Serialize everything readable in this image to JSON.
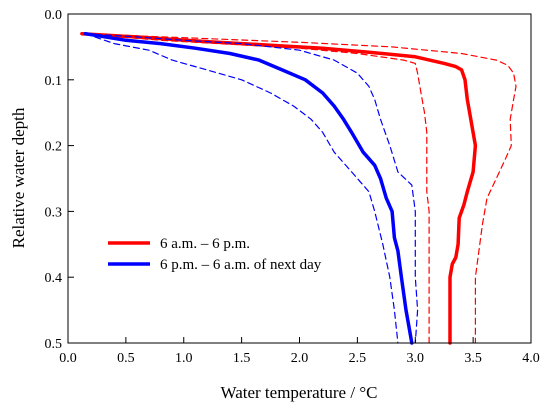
{
  "chart_data": {
    "type": "line",
    "title": "",
    "xlabel": "Water temperature / °C",
    "ylabel": "Relative water depth",
    "xlim": [
      0.0,
      4.0
    ],
    "ylim": [
      0.0,
      0.5
    ],
    "y_inverted": true,
    "x_axis_position": "bottom",
    "grid": false,
    "legend_placement": "lower-left",
    "xticks": [
      0.0,
      0.5,
      1.0,
      1.5,
      2.0,
      2.5,
      3.0,
      3.5,
      4.0
    ],
    "yticks": [
      0.0,
      0.1,
      0.2,
      0.3,
      0.4,
      0.5
    ],
    "xtick_labels": [
      "0.0",
      "0.5",
      "1.0",
      "1.5",
      "2.0",
      "2.5",
      "3.0",
      "3.5",
      "4.0"
    ],
    "ytick_labels": [
      "0.0",
      "0.1",
      "0.2",
      "0.3",
      "0.4",
      "0.5"
    ],
    "series": [
      {
        "name": "6 a.m. – 6 p.m.",
        "color": "#ff0000",
        "style": "solid",
        "in_legend": true,
        "points": [
          [
            0.12,
            0.03
          ],
          [
            0.6,
            0.035
          ],
          [
            1.2,
            0.042
          ],
          [
            1.8,
            0.048
          ],
          [
            2.2,
            0.052
          ],
          [
            2.6,
            0.058
          ],
          [
            3.0,
            0.065
          ],
          [
            3.25,
            0.075
          ],
          [
            3.35,
            0.08
          ],
          [
            3.4,
            0.085
          ],
          [
            3.43,
            0.1
          ],
          [
            3.45,
            0.13
          ],
          [
            3.48,
            0.16
          ],
          [
            3.52,
            0.2
          ],
          [
            3.5,
            0.24
          ],
          [
            3.45,
            0.27
          ],
          [
            3.42,
            0.29
          ],
          [
            3.38,
            0.31
          ],
          [
            3.37,
            0.35
          ],
          [
            3.35,
            0.37
          ],
          [
            3.32,
            0.38
          ],
          [
            3.3,
            0.4
          ],
          [
            3.3,
            0.45
          ],
          [
            3.3,
            0.5
          ]
        ]
      },
      {
        "name": "6 a.m. – 6 p.m. upper bound",
        "color": "#ff0000",
        "style": "dashed",
        "in_legend": false,
        "points": [
          [
            0.12,
            0.03
          ],
          [
            1.0,
            0.036
          ],
          [
            2.0,
            0.043
          ],
          [
            2.8,
            0.05
          ],
          [
            3.4,
            0.06
          ],
          [
            3.7,
            0.07
          ],
          [
            3.8,
            0.078
          ],
          [
            3.85,
            0.09
          ],
          [
            3.87,
            0.11
          ],
          [
            3.85,
            0.13
          ],
          [
            3.82,
            0.16
          ],
          [
            3.83,
            0.2
          ],
          [
            3.78,
            0.22
          ],
          [
            3.7,
            0.25
          ],
          [
            3.62,
            0.28
          ],
          [
            3.58,
            0.32
          ],
          [
            3.55,
            0.36
          ],
          [
            3.52,
            0.4
          ],
          [
            3.52,
            0.45
          ],
          [
            3.52,
            0.5
          ]
        ]
      },
      {
        "name": "6 a.m. – 6 p.m. lower bound",
        "color": "#ff0000",
        "style": "dashed",
        "in_legend": false,
        "points": [
          [
            0.12,
            0.03
          ],
          [
            0.8,
            0.04
          ],
          [
            1.5,
            0.047
          ],
          [
            2.0,
            0.052
          ],
          [
            2.5,
            0.06
          ],
          [
            2.9,
            0.07
          ],
          [
            3.0,
            0.075
          ],
          [
            3.02,
            0.09
          ],
          [
            3.05,
            0.12
          ],
          [
            3.08,
            0.15
          ],
          [
            3.1,
            0.18
          ],
          [
            3.1,
            0.22
          ],
          [
            3.1,
            0.27
          ],
          [
            3.12,
            0.3
          ],
          [
            3.12,
            0.35
          ],
          [
            3.12,
            0.4
          ],
          [
            3.12,
            0.45
          ],
          [
            3.12,
            0.5
          ]
        ]
      },
      {
        "name": "6 p.m. – 6 a.m. of next day",
        "color": "#0000ff",
        "style": "solid",
        "in_legend": true,
        "points": [
          [
            0.15,
            0.03
          ],
          [
            0.5,
            0.04
          ],
          [
            0.8,
            0.045
          ],
          [
            1.1,
            0.052
          ],
          [
            1.4,
            0.06
          ],
          [
            1.65,
            0.07
          ],
          [
            1.85,
            0.085
          ],
          [
            2.05,
            0.1
          ],
          [
            2.2,
            0.12
          ],
          [
            2.3,
            0.14
          ],
          [
            2.38,
            0.16
          ],
          [
            2.45,
            0.18
          ],
          [
            2.55,
            0.21
          ],
          [
            2.65,
            0.23
          ],
          [
            2.7,
            0.25
          ],
          [
            2.75,
            0.28
          ],
          [
            2.8,
            0.3
          ],
          [
            2.82,
            0.34
          ],
          [
            2.85,
            0.36
          ],
          [
            2.88,
            0.4
          ],
          [
            2.92,
            0.45
          ],
          [
            2.95,
            0.48
          ],
          [
            2.97,
            0.5
          ]
        ]
      },
      {
        "name": "6 p.m. – 6 a.m. of next day upper bound",
        "color": "#0000ff",
        "style": "dashed",
        "in_legend": false,
        "points": [
          [
            0.15,
            0.03
          ],
          [
            0.6,
            0.035
          ],
          [
            1.0,
            0.04
          ],
          [
            1.5,
            0.045
          ],
          [
            2.0,
            0.055
          ],
          [
            2.3,
            0.07
          ],
          [
            2.5,
            0.09
          ],
          [
            2.6,
            0.11
          ],
          [
            2.65,
            0.13
          ],
          [
            2.7,
            0.16
          ],
          [
            2.78,
            0.2
          ],
          [
            2.85,
            0.24
          ],
          [
            2.97,
            0.26
          ],
          [
            3.0,
            0.3
          ],
          [
            3.0,
            0.35
          ],
          [
            3.0,
            0.4
          ],
          [
            3.02,
            0.45
          ],
          [
            3.0,
            0.5
          ]
        ]
      },
      {
        "name": "6 p.m. – 6 a.m. of next day lower bound",
        "color": "#0000ff",
        "style": "dashed",
        "in_legend": false,
        "points": [
          [
            0.15,
            0.03
          ],
          [
            0.4,
            0.045
          ],
          [
            0.7,
            0.055
          ],
          [
            0.9,
            0.07
          ],
          [
            1.2,
            0.085
          ],
          [
            1.5,
            0.1
          ],
          [
            1.75,
            0.12
          ],
          [
            1.95,
            0.14
          ],
          [
            2.1,
            0.16
          ],
          [
            2.2,
            0.18
          ],
          [
            2.3,
            0.21
          ],
          [
            2.45,
            0.24
          ],
          [
            2.6,
            0.27
          ],
          [
            2.65,
            0.3
          ],
          [
            2.72,
            0.35
          ],
          [
            2.78,
            0.4
          ],
          [
            2.82,
            0.45
          ],
          [
            2.85,
            0.5
          ]
        ]
      }
    ]
  }
}
